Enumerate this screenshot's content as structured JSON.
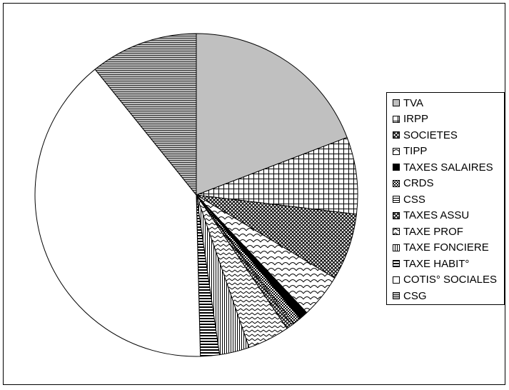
{
  "chart_data": {
    "type": "pie",
    "title": "",
    "categories": [
      "TVA",
      "IRPP",
      "SOCIETES",
      "TIPP",
      "TAXES SALAIRES",
      "CRDS",
      "CSS",
      "TAXES ASSU",
      "TAXE PROF",
      "TAXE FONCIERE",
      "TAXE HABIT°",
      "COTIS° SOCIALES",
      "CSG"
    ],
    "values": [
      19.2,
      7.7,
      6.7,
      4.4,
      0.9,
      0.8,
      0.2,
      0.6,
      4.2,
      3.0,
      1.9,
      39.6,
      10.8
    ],
    "unit": "%",
    "legend_position": "right",
    "fills": [
      {
        "pattern": "solid",
        "color": "#c0c0c0"
      },
      {
        "pattern": "grid"
      },
      {
        "pattern": "crosshatch-diagonal"
      },
      {
        "pattern": "scallop"
      },
      {
        "pattern": "solid",
        "color": "#000000"
      },
      {
        "pattern": "checker"
      },
      {
        "pattern": "horizontal-dense"
      },
      {
        "pattern": "crosshatch-diagonal"
      },
      {
        "pattern": "zigzag"
      },
      {
        "pattern": "vertical"
      },
      {
        "pattern": "horizontal-thick"
      },
      {
        "pattern": "solid",
        "color": "#ffffff"
      },
      {
        "pattern": "horizontal-gray"
      }
    ]
  }
}
